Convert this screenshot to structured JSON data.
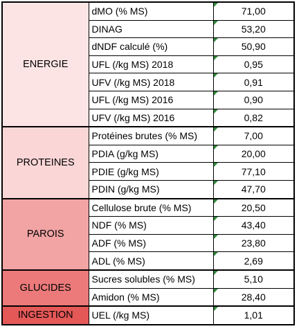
{
  "groups": [
    {
      "name": "ENERGIE",
      "color": "#fde4e4",
      "rows": [
        {
          "label": "dMO (% MS)",
          "value": "71,00"
        },
        {
          "label": "DINAG",
          "value": "53,20"
        },
        {
          "label": "dNDF calculé (%)",
          "value": "50,90"
        },
        {
          "label": "UFL (/kg MS) 2018",
          "value": "0,95"
        },
        {
          "label": "UFV (/kg MS) 2018",
          "value": "0,91"
        },
        {
          "label": "UFL (/kg MS) 2016",
          "value": "0,90"
        },
        {
          "label": "UFV (/kg MS) 2016",
          "value": "0,82"
        }
      ]
    },
    {
      "name": "PROTEINES",
      "color": "#fbd6d6",
      "rows": [
        {
          "label": "Protéines brutes (% MS)",
          "value": "7,00"
        },
        {
          "label": "PDIA (g/kg MS)",
          "value": "20,00"
        },
        {
          "label": "PDIE (g/kg MS)",
          "value": "77,10"
        },
        {
          "label": "PDIN (g/kg MS)",
          "value": "47,70"
        }
      ]
    },
    {
      "name": "PAROIS",
      "color": "#f2a3a3",
      "rows": [
        {
          "label": "Cellulose brute (% MS)",
          "value": "20,50"
        },
        {
          "label": "NDF (% MS)",
          "value": "43,40"
        },
        {
          "label": "ADF (% MS)",
          "value": "23,80"
        },
        {
          "label": "ADL (% MS)",
          "value": "2,69"
        }
      ]
    },
    {
      "name": "GLUCIDES",
      "color": "#ec7a7a",
      "rows": [
        {
          "label": "Sucres solubles (% MS)",
          "value": "5,10"
        },
        {
          "label": "Amidon (% MS)",
          "value": "28,40"
        }
      ]
    },
    {
      "name": "INGESTION",
      "color": "#e55858",
      "rows": [
        {
          "label": "UEL (/kg MS)",
          "value": "1,01"
        }
      ]
    }
  ]
}
